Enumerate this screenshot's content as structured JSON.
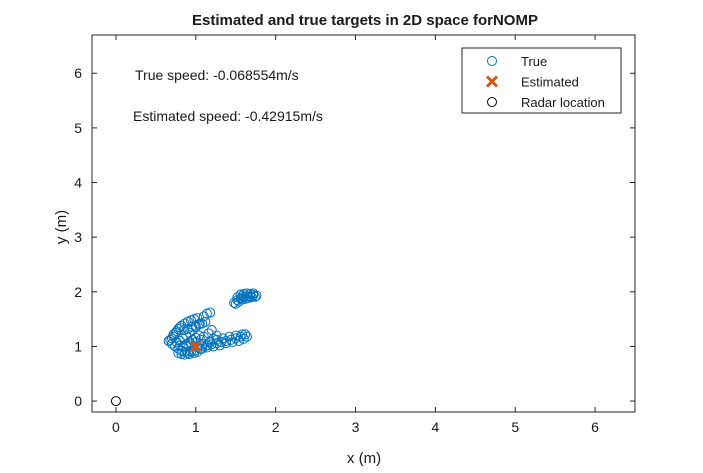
{
  "chart_data": {
    "type": "scatter",
    "title": "Estimated and true targets in 2D space forNOMP",
    "xlabel": "x (m)",
    "ylabel": "y (m)",
    "xlim": [
      -0.3,
      6.5
    ],
    "ylim": [
      -0.2,
      6.7
    ],
    "xticks": [
      0,
      1,
      2,
      3,
      4,
      5,
      6
    ],
    "yticks": [
      0,
      1,
      2,
      3,
      4,
      5,
      6
    ],
    "grid": false,
    "legend_position": "top-right",
    "annotations": [
      "True speed: -0.068554m/s",
      "Estimated speed: -0.42915m/s"
    ],
    "series": [
      {
        "name": "True",
        "marker": "open-circle",
        "color": "#0072BD",
        "points": [
          [
            0.68,
            1.12
          ],
          [
            0.72,
            1.18
          ],
          [
            0.75,
            1.25
          ],
          [
            0.78,
            1.32
          ],
          [
            0.82,
            1.38
          ],
          [
            0.86,
            1.42
          ],
          [
            0.9,
            1.45
          ],
          [
            0.94,
            1.48
          ],
          [
            0.98,
            1.5
          ],
          [
            1.02,
            1.52
          ],
          [
            0.7,
            1.05
          ],
          [
            0.74,
            1.0
          ],
          [
            0.78,
            0.96
          ],
          [
            0.82,
            0.92
          ],
          [
            0.86,
            0.9
          ],
          [
            0.9,
            0.88
          ],
          [
            0.94,
            0.9
          ],
          [
            0.98,
            0.92
          ],
          [
            0.8,
            1.1
          ],
          [
            0.84,
            1.15
          ],
          [
            0.88,
            1.2
          ],
          [
            0.92,
            1.25
          ],
          [
            0.96,
            1.3
          ],
          [
            1.0,
            1.35
          ],
          [
            1.04,
            1.4
          ],
          [
            1.08,
            1.42
          ],
          [
            1.12,
            1.45
          ],
          [
            0.76,
            1.08
          ],
          [
            0.8,
            1.02
          ],
          [
            0.84,
            1.0
          ],
          [
            0.88,
            1.04
          ],
          [
            0.92,
            1.08
          ],
          [
            0.96,
            1.12
          ],
          [
            1.0,
            1.16
          ],
          [
            1.04,
            1.2
          ],
          [
            0.66,
            1.1
          ],
          [
            0.7,
            1.15
          ],
          [
            0.72,
            1.22
          ],
          [
            0.76,
            1.28
          ],
          [
            0.8,
            1.35
          ],
          [
            0.85,
            1.3
          ],
          [
            0.9,
            1.32
          ],
          [
            0.95,
            1.36
          ],
          [
            1.0,
            1.38
          ],
          [
            1.05,
            1.42
          ],
          [
            0.78,
            0.88
          ],
          [
            0.82,
            0.86
          ],
          [
            0.86,
            0.85
          ],
          [
            0.92,
            0.86
          ],
          [
            0.98,
            0.88
          ],
          [
            1.02,
            0.9
          ],
          [
            1.08,
            0.96
          ],
          [
            1.14,
            1.02
          ],
          [
            1.18,
            1.08
          ],
          [
            1.22,
            1.14
          ],
          [
            1.26,
            1.2
          ],
          [
            0.88,
            1.0
          ],
          [
            0.94,
            1.04
          ],
          [
            1.0,
            1.08
          ],
          [
            1.06,
            1.12
          ],
          [
            1.1,
            1.18
          ],
          [
            1.16,
            1.24
          ],
          [
            1.2,
            1.3
          ],
          [
            1.1,
            1.55
          ],
          [
            1.14,
            1.6
          ],
          [
            1.18,
            1.62
          ],
          [
            1.02,
            0.98
          ],
          [
            1.08,
            1.0
          ],
          [
            1.14,
            1.02
          ],
          [
            1.2,
            1.04
          ],
          [
            1.26,
            1.06
          ],
          [
            1.32,
            1.08
          ],
          [
            1.38,
            1.1
          ],
          [
            1.44,
            1.12
          ],
          [
            1.5,
            1.15
          ],
          [
            1.56,
            1.18
          ],
          [
            1.62,
            1.22
          ],
          [
            1.1,
            1.05
          ],
          [
            1.18,
            1.08
          ],
          [
            1.26,
            1.12
          ],
          [
            1.34,
            1.15
          ],
          [
            1.42,
            1.18
          ],
          [
            1.5,
            1.2
          ],
          [
            1.58,
            1.22
          ],
          [
            1.64,
            1.18
          ],
          [
            1.06,
            0.95
          ],
          [
            1.14,
            0.98
          ],
          [
            1.22,
            1.0
          ],
          [
            1.3,
            1.02
          ],
          [
            1.38,
            1.06
          ],
          [
            1.46,
            1.08
          ],
          [
            1.54,
            1.1
          ],
          [
            1.6,
            1.14
          ],
          [
            1.48,
            1.8
          ],
          [
            1.52,
            1.85
          ],
          [
            1.56,
            1.88
          ],
          [
            1.6,
            1.9
          ],
          [
            1.64,
            1.92
          ],
          [
            1.68,
            1.92
          ],
          [
            1.72,
            1.94
          ],
          [
            1.76,
            1.93
          ],
          [
            1.5,
            1.78
          ],
          [
            1.54,
            1.82
          ],
          [
            1.58,
            1.86
          ],
          [
            1.62,
            1.87
          ],
          [
            1.66,
            1.89
          ],
          [
            1.7,
            1.9
          ],
          [
            1.74,
            1.91
          ],
          [
            1.56,
            1.95
          ],
          [
            1.6,
            1.96
          ],
          [
            1.64,
            1.97
          ],
          [
            1.68,
            1.96
          ],
          [
            1.72,
            1.97
          ],
          [
            1.52,
            1.9
          ],
          [
            1.58,
            1.92
          ]
        ]
      },
      {
        "name": "Estimated",
        "marker": "x",
        "color": "#D95319",
        "points": [
          [
            1.0,
            1.0
          ]
        ]
      },
      {
        "name": "Radar location",
        "marker": "open-circle",
        "color": "#000000",
        "points": [
          [
            0,
            0
          ]
        ]
      }
    ]
  }
}
